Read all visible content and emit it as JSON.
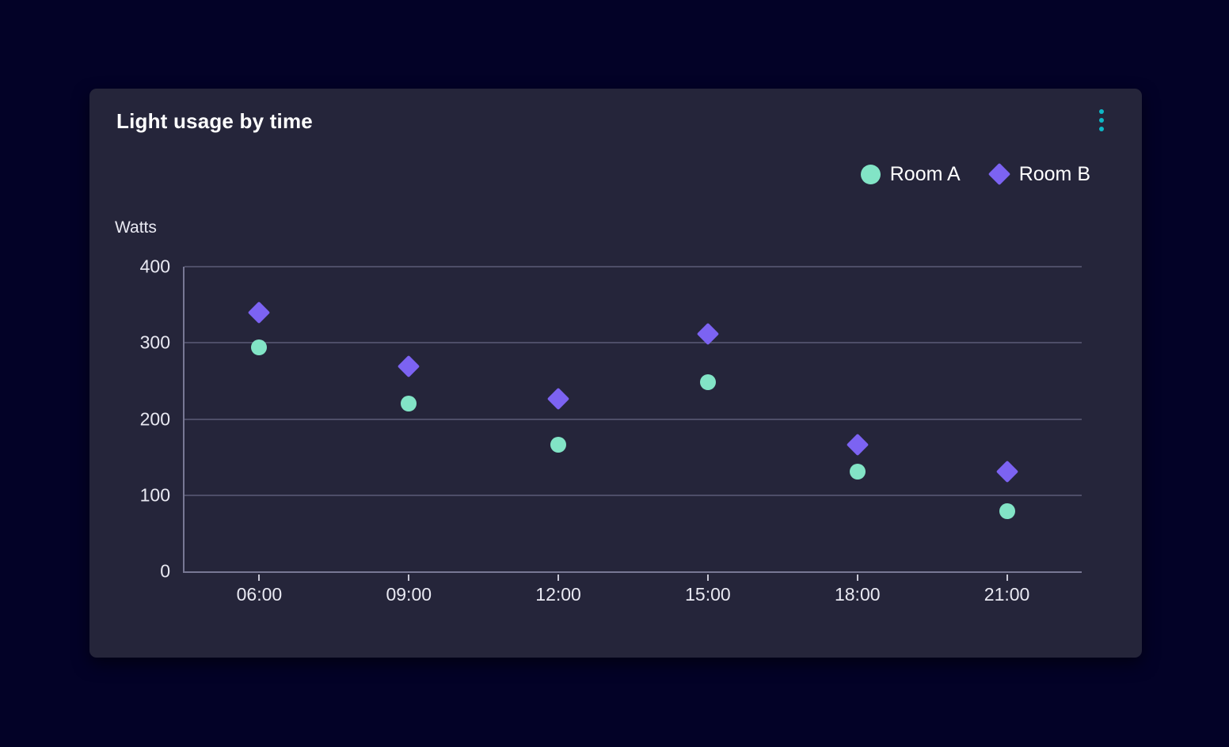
{
  "card": {
    "title": "Light usage by time",
    "menu_icon": "kebab-vertical-dots"
  },
  "colors": {
    "page_bg": "#030227",
    "card_bg": "#25253a",
    "grid": "#4e4e68",
    "spine": "#787894",
    "tick_mark": "#c8c8d6",
    "tick_text": "#e9e9f2",
    "text": "#ffffff",
    "menu_dots": "#0eb7c6",
    "room_a": "#82e4c6",
    "room_b": "#7c63f2"
  },
  "chart_data": {
    "type": "scatter",
    "title": "Light usage by time",
    "xlabel": "",
    "ylabel": "Watts",
    "categories": [
      "06:00",
      "09:00",
      "12:00",
      "15:00",
      "18:00",
      "21:00"
    ],
    "series": [
      {
        "name": "Room A",
        "marker": "circle",
        "color": "#82e4c6",
        "values": [
          294,
          220,
          166,
          248,
          131,
          79
        ]
      },
      {
        "name": "Room B",
        "marker": "diamond",
        "color": "#7c63f2",
        "values": [
          340,
          269,
          227,
          312,
          166,
          131
        ]
      }
    ],
    "ylim": [
      0,
      400
    ],
    "yticks": [
      0,
      100,
      200,
      300,
      400
    ],
    "grid": true,
    "legend_position": "top-right"
  }
}
